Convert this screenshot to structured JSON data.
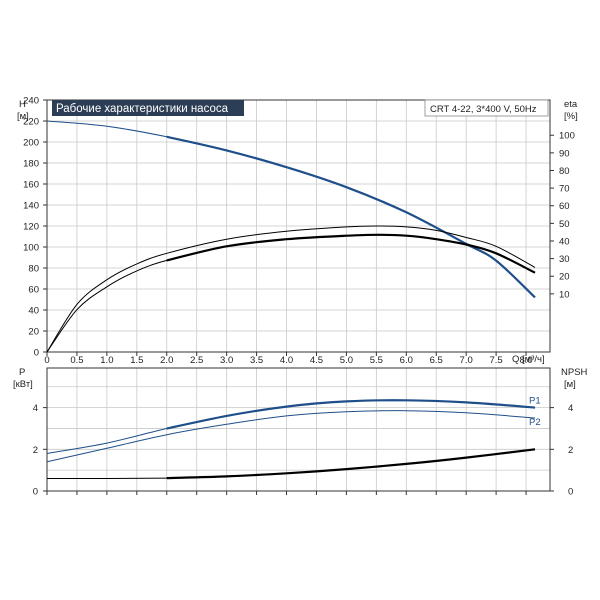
{
  "title": "Рабочие характеристики насоса",
  "pump_label": "CRT 4-22, 3*400 V, 50Hz",
  "colors": {
    "blue": "#1f4f8a",
    "black": "#000000",
    "grid": "#c9c9c9",
    "title_bg": "#2c3e55"
  },
  "chart_data": [
    {
      "type": "line",
      "name": "head-efficiency",
      "left_axis": {
        "label_top": "H",
        "label_unit": "[м]",
        "ylim": [
          0,
          240
        ],
        "ticks": [
          0,
          20,
          40,
          60,
          80,
          100,
          120,
          140,
          160,
          180,
          200,
          220,
          240
        ]
      },
      "right_axis": {
        "label_top": "eta",
        "label_unit": "[%]",
        "ylim": [
          -23,
          120
        ],
        "ticks": [
          10,
          20,
          30,
          40,
          50,
          60,
          70,
          80,
          90,
          100
        ]
      },
      "x_axis": {
        "label": "Q [м³/ч]",
        "xlim": [
          0,
          8.4
        ],
        "ticks": [
          "0",
          "0.5",
          "1.0",
          "1.5",
          "2.0",
          "2.5",
          "3.0",
          "3.5",
          "4.0",
          "4.5",
          "5.0",
          "5.5",
          "6.0",
          "6.5",
          "7.0",
          "7.5",
          "8.0"
        ]
      },
      "grid": true,
      "series": [
        {
          "axis": "left",
          "color": "#1f4f8a",
          "highlight_from": 2.0,
          "points": [
            [
              0,
              220
            ],
            [
              1,
              215
            ],
            [
              2,
              205
            ],
            [
              3,
              192
            ],
            [
              4,
              176
            ],
            [
              5,
              157
            ],
            [
              6,
              133
            ],
            [
              7,
              103
            ],
            [
              7.5,
              87
            ],
            [
              8.15,
              52
            ]
          ]
        },
        {
          "axis": "right",
          "color": "#000000",
          "highlight_from": 2.0,
          "points": [
            [
              0,
              -23
            ],
            [
              0.5,
              1
            ],
            [
              1,
              14
            ],
            [
              1.5,
              23
            ],
            [
              2,
              29
            ],
            [
              3,
              37
            ],
            [
              4,
              41
            ],
            [
              5,
              43
            ],
            [
              5.5,
              43.5
            ],
            [
              6,
              43
            ],
            [
              6.5,
              41
            ],
            [
              7,
              38
            ],
            [
              7.5,
              33
            ],
            [
              8.15,
              22
            ]
          ]
        },
        {
          "axis": "right",
          "color": "#000000",
          "highlight_from": 99,
          "points": [
            [
              0,
              -23
            ],
            [
              0.5,
              4
            ],
            [
              1,
              18
            ],
            [
              1.5,
              27
            ],
            [
              2,
              33
            ],
            [
              3,
              41
            ],
            [
              4,
              45.5
            ],
            [
              5,
              48
            ],
            [
              5.5,
              48.5
            ],
            [
              6,
              48
            ],
            [
              6.5,
              46
            ],
            [
              7,
              42
            ],
            [
              7.5,
              37
            ],
            [
              8.15,
              25
            ]
          ]
        }
      ]
    },
    {
      "type": "line",
      "name": "power-npsh",
      "left_axis": {
        "label_top": "P",
        "label_unit": "[кВт]",
        "ylim": [
          0,
          5.9
        ],
        "ticks": [
          0,
          2,
          4
        ]
      },
      "right_axis": {
        "label_top": "NPSH",
        "label_unit": "[м]",
        "ylim": [
          0,
          5.9
        ],
        "ticks": [
          0,
          2,
          4
        ]
      },
      "xlim": [
        0,
        8.4
      ],
      "grid": true,
      "series": [
        {
          "name": "P1",
          "axis": "left",
          "color": "#1f4f8a",
          "highlight_from": 2.0,
          "points": [
            [
              0,
              1.8
            ],
            [
              1,
              2.3
            ],
            [
              2,
              3.0
            ],
            [
              3,
              3.6
            ],
            [
              4,
              4.05
            ],
            [
              5,
              4.3
            ],
            [
              6,
              4.35
            ],
            [
              7,
              4.25
            ],
            [
              8.15,
              4.0
            ]
          ]
        },
        {
          "name": "P2",
          "axis": "left",
          "color": "#1f4f8a",
          "highlight_from": 99,
          "points": [
            [
              0,
              1.4
            ],
            [
              1,
              2.05
            ],
            [
              2,
              2.7
            ],
            [
              3,
              3.2
            ],
            [
              4,
              3.6
            ],
            [
              5,
              3.8
            ],
            [
              6,
              3.85
            ],
            [
              7,
              3.75
            ],
            [
              8.15,
              3.5
            ]
          ]
        },
        {
          "axis": "right",
          "color": "#000000",
          "highlight_from": 2.0,
          "points": [
            [
              0,
              0.6
            ],
            [
              1,
              0.6
            ],
            [
              2,
              0.62
            ],
            [
              3,
              0.7
            ],
            [
              4,
              0.85
            ],
            [
              5,
              1.05
            ],
            [
              6,
              1.3
            ],
            [
              7,
              1.6
            ],
            [
              8.15,
              2.0
            ]
          ]
        }
      ]
    }
  ]
}
